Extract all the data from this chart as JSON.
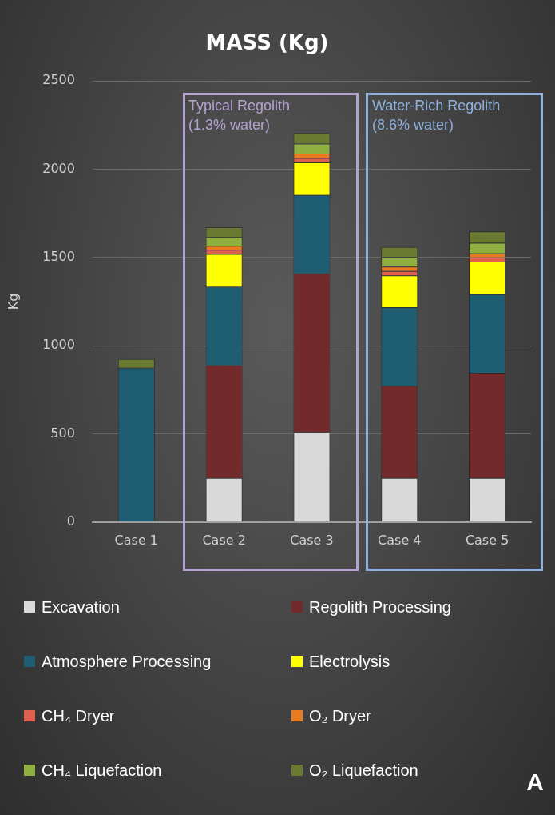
{
  "chart_data": {
    "type": "bar",
    "title": "MASS (Kg)",
    "ylabel": "Kg",
    "stacked": true,
    "categories": [
      "Case 1",
      "Case 2",
      "Case 3",
      "Case 4",
      "Case 5"
    ],
    "series": [
      {
        "name": "Excavation",
        "color": "#d9d9d9",
        "values": [
          0,
          250,
          510,
          250,
          250
        ]
      },
      {
        "name": "Regolith Processing",
        "color": "#722a2a",
        "values": [
          0,
          640,
          900,
          523,
          597
        ]
      },
      {
        "name": "Atmosphere Processing",
        "color": "#1f5e72",
        "values": [
          875,
          444,
          444,
          445,
          445
        ]
      },
      {
        "name": "Electrolysis",
        "color": "#ffff00",
        "values": [
          0,
          186,
          185,
          180,
          185
        ]
      },
      {
        "name": "CH₄ Dryer",
        "color": "#e06050",
        "values": [
          0,
          23,
          25,
          25,
          23
        ]
      },
      {
        "name": "O₂ Dryer",
        "color": "#e87a20",
        "values": [
          0,
          23,
          25,
          25,
          23
        ]
      },
      {
        "name": "CH₄ Liquefaction",
        "color": "#8fb040",
        "values": [
          0,
          50,
          56,
          56,
          60
        ]
      },
      {
        "name": "O₂ Liquefaction",
        "color": "#6a7a30",
        "values": [
          50,
          55,
          60,
          55,
          65
        ]
      }
    ],
    "ylim": [
      0,
      2500
    ],
    "yticks": [
      0,
      500,
      1000,
      1500,
      2000,
      2500
    ],
    "grid": "y",
    "legend": "bottom",
    "annotations": [
      "Typical Regolith (1.3% water)",
      "Water-Rich Regolith (8.6% water)",
      "A"
    ]
  }
}
